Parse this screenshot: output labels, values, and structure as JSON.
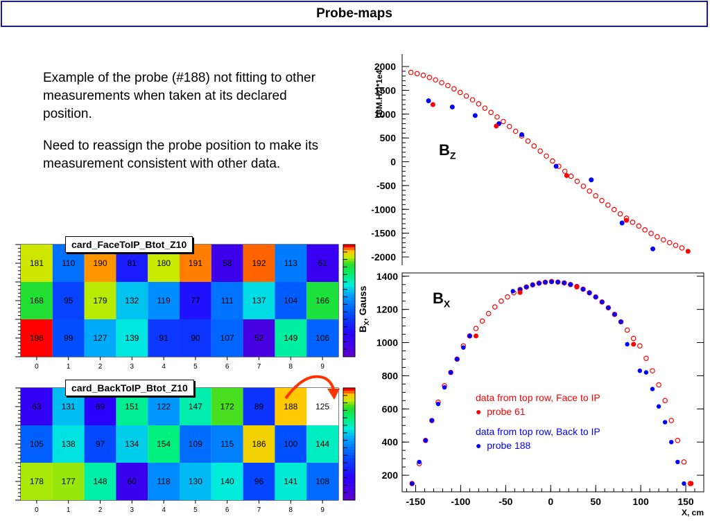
{
  "page": {
    "title": "Probe-maps"
  },
  "text": {
    "para1": "Example of the probe (#188) not fitting to other measurements when taken at its declared position.",
    "para2": "Need to reassign the probe position to make its measurement consistent with other data."
  },
  "colors": {
    "face": "#ff0000",
    "back": "#0000ff",
    "title_border": "#1a1aa8"
  },
  "heatmaps": [
    {
      "title": "card_FaceToIP_Btot_Z10",
      "x_ticks": [
        "0",
        "1",
        "2",
        "3",
        "4",
        "5",
        "6",
        "7",
        "8",
        "9"
      ],
      "rows": [
        [
          181,
          110,
          190,
          81,
          180,
          191,
          58,
          192,
          113,
          61
        ],
        [
          168,
          95,
          179,
          132,
          119,
          77,
          111,
          137,
          104,
          166
        ],
        [
          196,
          99,
          127,
          139,
          91,
          90,
          107,
          52,
          149,
          106
        ]
      ]
    },
    {
      "title": "card_BackToIP_Btot_Z10",
      "x_ticks": [
        "0",
        "1",
        "2",
        "3",
        "4",
        "5",
        "6",
        "7",
        "8",
        "9"
      ],
      "highlight": {
        "row": 0,
        "col": 9
      },
      "rows": [
        [
          63,
          131,
          69,
          151,
          122,
          147,
          172,
          89,
          188,
          125
        ],
        [
          105,
          138,
          97,
          134,
          154,
          109,
          115,
          186,
          100,
          144
        ],
        [
          178,
          177,
          148,
          60,
          118,
          130,
          140,
          96,
          141,
          108
        ]
      ]
    }
  ],
  "chart_data": [
    {
      "type": "scatter",
      "label": "BZ",
      "label_main": "B",
      "label_sub": "Z",
      "ylabel": "(BM.Hz)*1e4",
      "ylim": [
        -2100,
        2100
      ],
      "y_ticks": [
        "2000",
        "1500",
        "1000",
        "500",
        "0",
        "-500",
        "-1000",
        "-1500",
        "-2000"
      ],
      "series": [
        {
          "color": "#ff0000",
          "points": [
            [
              -155,
              1875
            ],
            [
              -148,
              1850
            ],
            [
              -141,
              1815
            ],
            [
              -134,
              1770
            ],
            [
              -127,
              1720
            ],
            [
              -120,
              1660
            ],
            [
              -113,
              1600
            ],
            [
              -106,
              1530
            ],
            [
              -99,
              1455
            ],
            [
              -92,
              1380
            ],
            [
              -85,
              1300
            ],
            [
              -78,
              1215
            ],
            [
              -71,
              1125
            ],
            [
              -64,
              1035
            ],
            [
              -57,
              940
            ],
            [
              -50,
              845
            ],
            [
              -43,
              740
            ],
            [
              -36,
              640
            ],
            [
              -29,
              540
            ],
            [
              -22,
              435
            ],
            [
              -15,
              330
            ],
            [
              -8,
              225
            ],
            [
              -1,
              120
            ],
            [
              6,
              15
            ],
            [
              13,
              -95
            ],
            [
              20,
              -200
            ],
            [
              27,
              -305
            ],
            [
              34,
              -410
            ],
            [
              41,
              -515
            ],
            [
              48,
              -615
            ],
            [
              55,
              -715
            ],
            [
              62,
              -815
            ],
            [
              69,
              -910
            ],
            [
              76,
              -1005
            ],
            [
              83,
              -1095
            ],
            [
              90,
              -1185
            ],
            [
              97,
              -1270
            ],
            [
              104,
              -1350
            ],
            [
              111,
              -1430
            ],
            [
              118,
              -1505
            ],
            [
              125,
              -1575
            ],
            [
              132,
              -1640
            ],
            [
              139,
              -1700
            ],
            [
              146,
              -1755
            ],
            [
              153,
              -1810
            ]
          ]
        },
        {
          "color": "#0000ff",
          "points": [
            [
              -135,
              1280
            ],
            [
              -108,
              1150
            ],
            [
              -82,
              970
            ],
            [
              -55,
              800
            ],
            [
              -29,
              570
            ],
            [
              10,
              -95
            ],
            [
              50,
              -380
            ],
            [
              85,
              -1285
            ],
            [
              120,
              -1830
            ]
          ]
        }
      ]
    },
    {
      "type": "scatter",
      "label": "BX",
      "label_main": "B",
      "label_sub": "X",
      "xlabel": "X, cm",
      "ylabel": "BX, Gauss",
      "ylabel_main": "B",
      "ylabel_sub": "X",
      "ylabel_rest": ", Gauss",
      "xlim": [
        -165,
        170
      ],
      "ylim": [
        100,
        1420
      ],
      "x_ticks": [
        "-150",
        "-100",
        "-50",
        "0",
        "50",
        "100",
        "150"
      ],
      "y_ticks": [
        "1400",
        "1200",
        "1000",
        "800",
        "600",
        "400",
        "200"
      ],
      "series": [
        {
          "name": "data from top row, Face to IP",
          "point_label": "probe 61",
          "color": "#ff0000",
          "points": [
            [
              -154,
              150
            ],
            [
              -146,
              270
            ],
            [
              -139,
              410
            ],
            [
              -132,
              530
            ],
            [
              -125,
              640
            ],
            [
              -118,
              740
            ],
            [
              -111,
              820
            ],
            [
              -104,
              900
            ],
            [
              -97,
              980
            ],
            [
              -90,
              1040
            ],
            [
              -83,
              1085
            ],
            [
              -76,
              1130
            ],
            [
              -69,
              1175
            ],
            [
              -62,
              1215
            ],
            [
              -55,
              1250
            ],
            [
              -48,
              1275
            ],
            [
              -41,
              1300
            ],
            [
              -34,
              1320
            ],
            [
              -27,
              1335
            ],
            [
              -20,
              1348
            ],
            [
              -13,
              1358
            ],
            [
              -6,
              1364
            ],
            [
              1,
              1368
            ],
            [
              8,
              1365
            ],
            [
              15,
              1360
            ],
            [
              22,
              1350
            ],
            [
              29,
              1338
            ],
            [
              36,
              1322
            ],
            [
              43,
              1300
            ],
            [
              50,
              1275
            ],
            [
              57,
              1245
            ],
            [
              64,
              1210
            ],
            [
              71,
              1170
            ],
            [
              78,
              1125
            ],
            [
              85,
              1075
            ],
            [
              92,
              1025
            ],
            [
              99,
              980
            ],
            [
              106,
              905
            ],
            [
              113,
              830
            ],
            [
              120,
              745
            ],
            [
              127,
              650
            ],
            [
              134,
              530
            ],
            [
              141,
              410
            ],
            [
              148,
              280
            ],
            [
              155,
              150
            ]
          ]
        },
        {
          "name": "data from top row, Back to IP",
          "point_label": "probe 188",
          "color": "#0000ff",
          "points": [
            [
              -154,
              150
            ],
            [
              -146,
              280
            ],
            [
              -139,
              410
            ],
            [
              -132,
              530
            ],
            [
              -125,
              630
            ],
            [
              -118,
              730
            ],
            [
              -111,
              820
            ],
            [
              -104,
              900
            ],
            [
              -97,
              970
            ],
            [
              -90,
              1040
            ],
            [
              -42,
              1310
            ],
            [
              -34,
              1320
            ],
            [
              -27,
              1335
            ],
            [
              -20,
              1348
            ],
            [
              -13,
              1358
            ],
            [
              -6,
              1364
            ],
            [
              1,
              1366
            ],
            [
              8,
              1365
            ],
            [
              15,
              1360
            ],
            [
              22,
              1350
            ],
            [
              29,
              1338
            ],
            [
              36,
              1322
            ],
            [
              43,
              1300
            ],
            [
              50,
              1275
            ],
            [
              57,
              1245
            ],
            [
              64,
              1210
            ],
            [
              71,
              1170
            ],
            [
              78,
              1125
            ],
            [
              85,
              990
            ],
            [
              99,
              830
            ],
            [
              106,
              820
            ],
            [
              113,
              720
            ],
            [
              120,
              615
            ],
            [
              127,
              520
            ],
            [
              134,
              400
            ],
            [
              141,
              280
            ],
            [
              148,
              150
            ]
          ]
        }
      ]
    }
  ]
}
